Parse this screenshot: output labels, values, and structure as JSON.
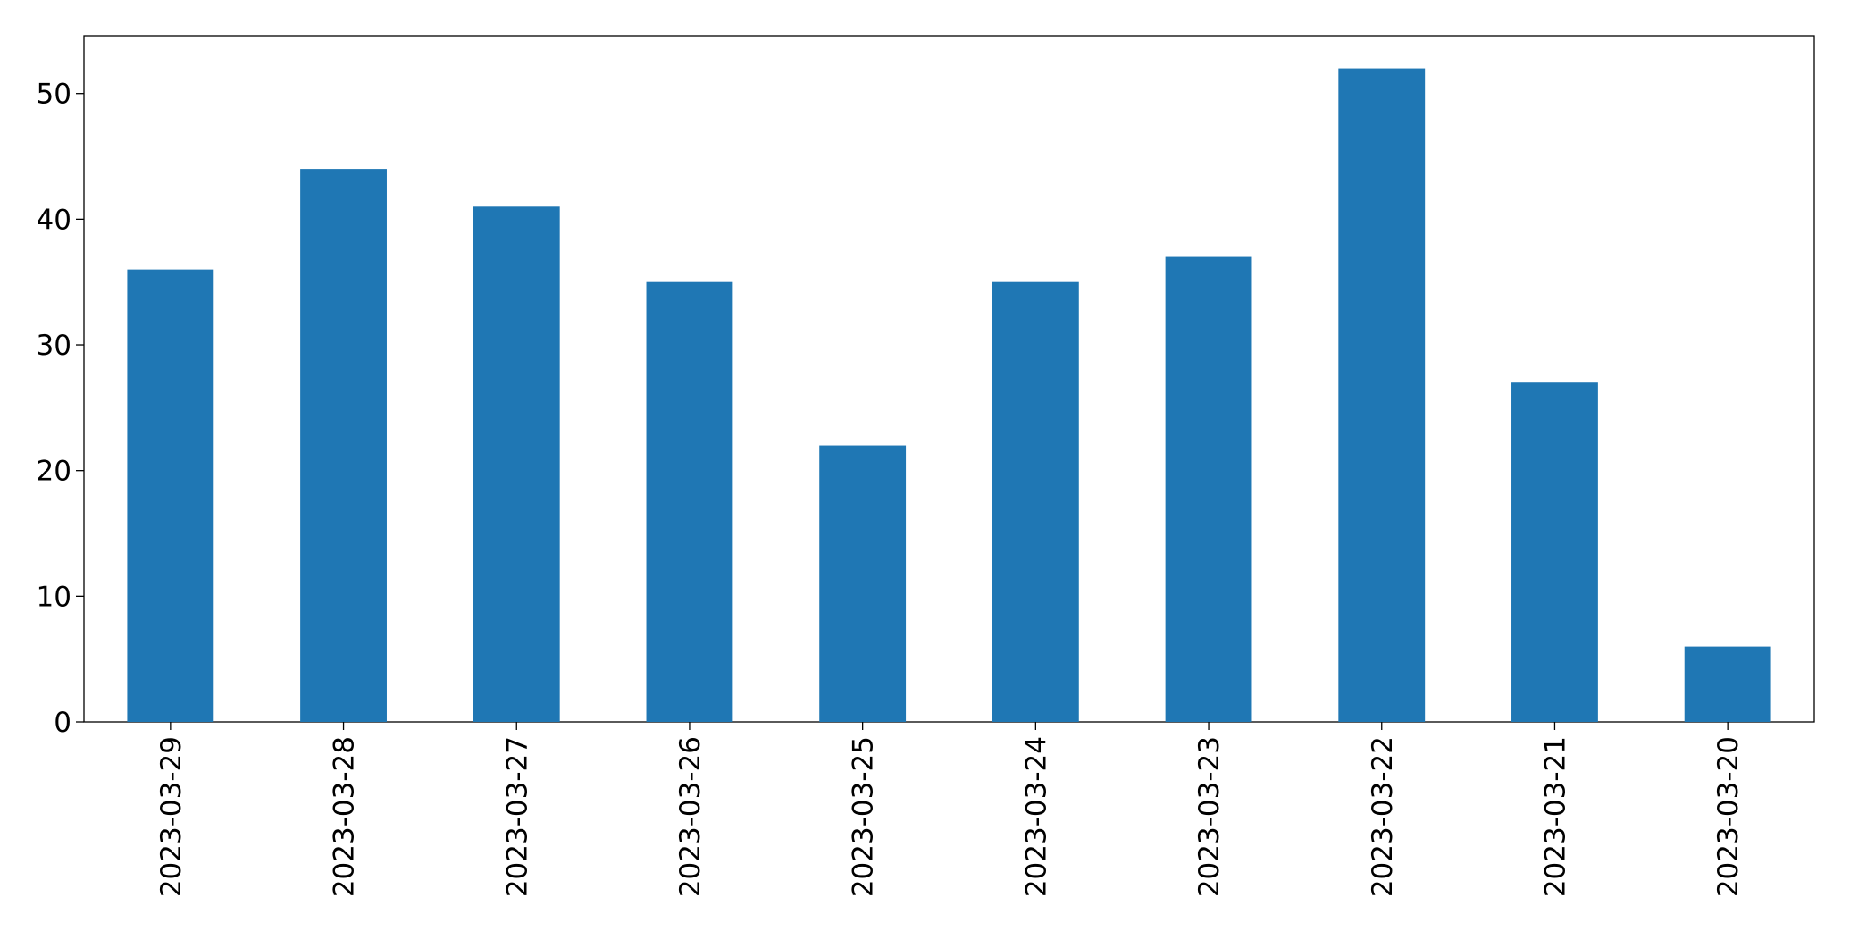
{
  "chart_data": {
    "type": "bar",
    "categories": [
      "2023-03-29",
      "2023-03-28",
      "2023-03-27",
      "2023-03-26",
      "2023-03-25",
      "2023-03-24",
      "2023-03-23",
      "2023-03-22",
      "2023-03-21",
      "2023-03-20"
    ],
    "values": [
      36,
      44,
      41,
      35,
      22,
      35,
      37,
      52,
      27,
      6
    ],
    "color": "#1f77b4",
    "ylim": [
      0,
      54.6
    ],
    "yticks": [
      0,
      10,
      20,
      30,
      40,
      50
    ],
    "grid": false
  }
}
